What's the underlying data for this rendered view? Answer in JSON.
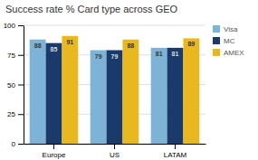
{
  "chart_data": {
    "type": "bar",
    "title": "Success rate % Card type across GEO",
    "categories": [
      "Europe",
      "US",
      "LATAM"
    ],
    "series": [
      {
        "name": "Visa",
        "values": [
          88,
          79,
          81
        ],
        "color": "#7eb3d8"
      },
      {
        "name": "MC",
        "values": [
          85,
          79,
          81
        ],
        "color": "#1a3a6b"
      },
      {
        "name": "AMEX",
        "values": [
          91,
          88,
          89
        ],
        "color": "#e8b820"
      }
    ],
    "ylim": [
      0,
      100
    ],
    "yticks": [
      0,
      25,
      50,
      75,
      100
    ],
    "grid": true,
    "legend": "right",
    "data_labels": true
  }
}
